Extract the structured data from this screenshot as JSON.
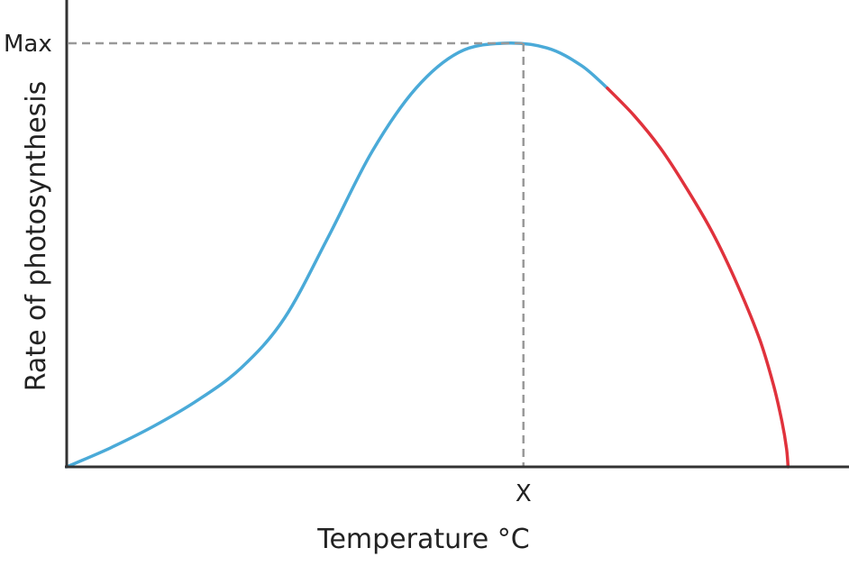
{
  "chart_data": {
    "type": "line",
    "title": "",
    "xlabel": "Temperature °C",
    "ylabel": "Rate of photosynthesis",
    "x_tick_labels": [
      {
        "x": 0.604,
        "label": "X"
      }
    ],
    "y_tick_labels": [
      {
        "y": 1.0,
        "label": "Max"
      }
    ],
    "xlim": [
      0,
      1
    ],
    "ylim": [
      0,
      1.1
    ],
    "grid": false,
    "legend": "none",
    "peak": {
      "x": 0.604,
      "y": 1.0
    },
    "series": [
      {
        "color": "#4aaad8",
        "points": [
          [
            0.0,
            0.0
          ],
          [
            0.058,
            0.045
          ],
          [
            0.115,
            0.096
          ],
          [
            0.173,
            0.157
          ],
          [
            0.231,
            0.234
          ],
          [
            0.288,
            0.351
          ],
          [
            0.346,
            0.543
          ],
          [
            0.404,
            0.745
          ],
          [
            0.462,
            0.894
          ],
          [
            0.519,
            0.979
          ],
          [
            0.577,
            1.0
          ],
          [
            0.635,
            0.989
          ],
          [
            0.681,
            0.947
          ],
          [
            0.715,
            0.894
          ]
        ]
      },
      {
        "color": "#e0323c",
        "points": [
          [
            0.715,
            0.894
          ],
          [
            0.75,
            0.83
          ],
          [
            0.785,
            0.753
          ],
          [
            0.819,
            0.66
          ],
          [
            0.854,
            0.553
          ],
          [
            0.888,
            0.426
          ],
          [
            0.917,
            0.298
          ],
          [
            0.935,
            0.191
          ],
          [
            0.946,
            0.106
          ],
          [
            0.952,
            0.043
          ],
          [
            0.954,
            0.0
          ]
        ]
      }
    ],
    "colors": {
      "axis": "#333333",
      "guide": "#999999"
    }
  }
}
